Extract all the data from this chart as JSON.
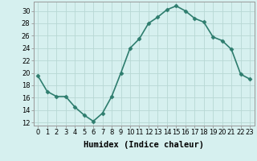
{
  "x": [
    0,
    1,
    2,
    3,
    4,
    5,
    6,
    7,
    8,
    9,
    10,
    11,
    12,
    13,
    14,
    15,
    16,
    17,
    18,
    19,
    20,
    21,
    22,
    23
  ],
  "y": [
    19.5,
    17.0,
    16.2,
    16.2,
    14.5,
    13.2,
    12.2,
    13.5,
    16.2,
    20.0,
    24.0,
    25.5,
    28.0,
    29.0,
    30.2,
    30.8,
    30.0,
    28.8,
    28.2,
    25.8,
    25.2,
    23.8,
    19.8,
    19.0
  ],
  "line_color": "#2e7d6e",
  "marker": "D",
  "marker_size": 2.5,
  "bg_color": "#d6f0ef",
  "grid_color": "#b8d8d4",
  "xlabel": "Humidex (Indice chaleur)",
  "ylim": [
    11.5,
    31.5
  ],
  "yticks": [
    12,
    14,
    16,
    18,
    20,
    22,
    24,
    26,
    28,
    30
  ],
  "xticks": [
    0,
    1,
    2,
    3,
    4,
    5,
    6,
    7,
    8,
    9,
    10,
    11,
    12,
    13,
    14,
    15,
    16,
    17,
    18,
    19,
    20,
    21,
    22,
    23
  ],
  "xlim": [
    -0.5,
    23.5
  ],
  "tick_fontsize": 6,
  "xlabel_fontsize": 7.5,
  "linewidth": 1.2
}
